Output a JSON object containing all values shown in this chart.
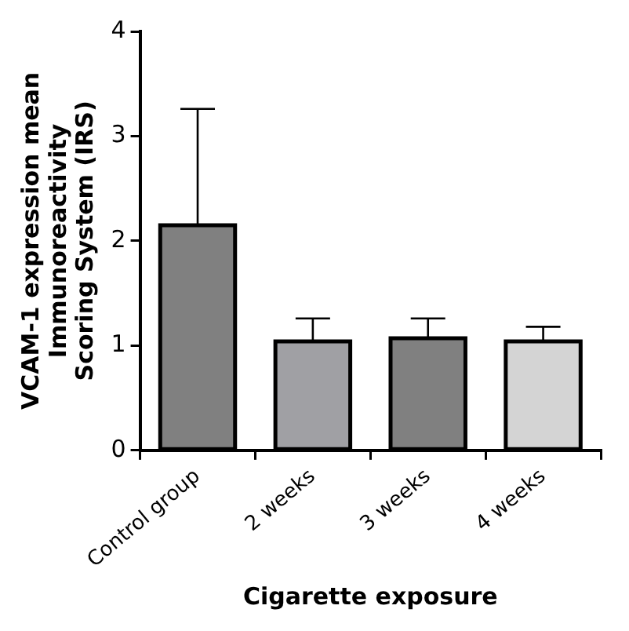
{
  "chart_data": {
    "type": "bar",
    "xlabel": "Cigarette exposure",
    "ylabel": "VCAM-1 expression mean\nImmunoreactivity\nScoring System (IRS)",
    "categories": [
      "Control group",
      "2 weeks",
      "3 weeks",
      "4 weeks"
    ],
    "values": [
      2.15,
      1.04,
      1.07,
      1.04
    ],
    "colors": [
      "#808080",
      "#a0a0a4",
      "#808080",
      "#d4d4d4"
    ],
    "errors": [
      [
        2.15,
        3.26
      ],
      [
        1.04,
        1.26
      ],
      [
        1.07,
        1.26
      ],
      [
        1.04,
        1.18
      ]
    ],
    "ylim": [
      0,
      4
    ],
    "yticks": [
      0,
      1,
      2,
      3,
      4
    ],
    "grid": false,
    "legend": false
  }
}
